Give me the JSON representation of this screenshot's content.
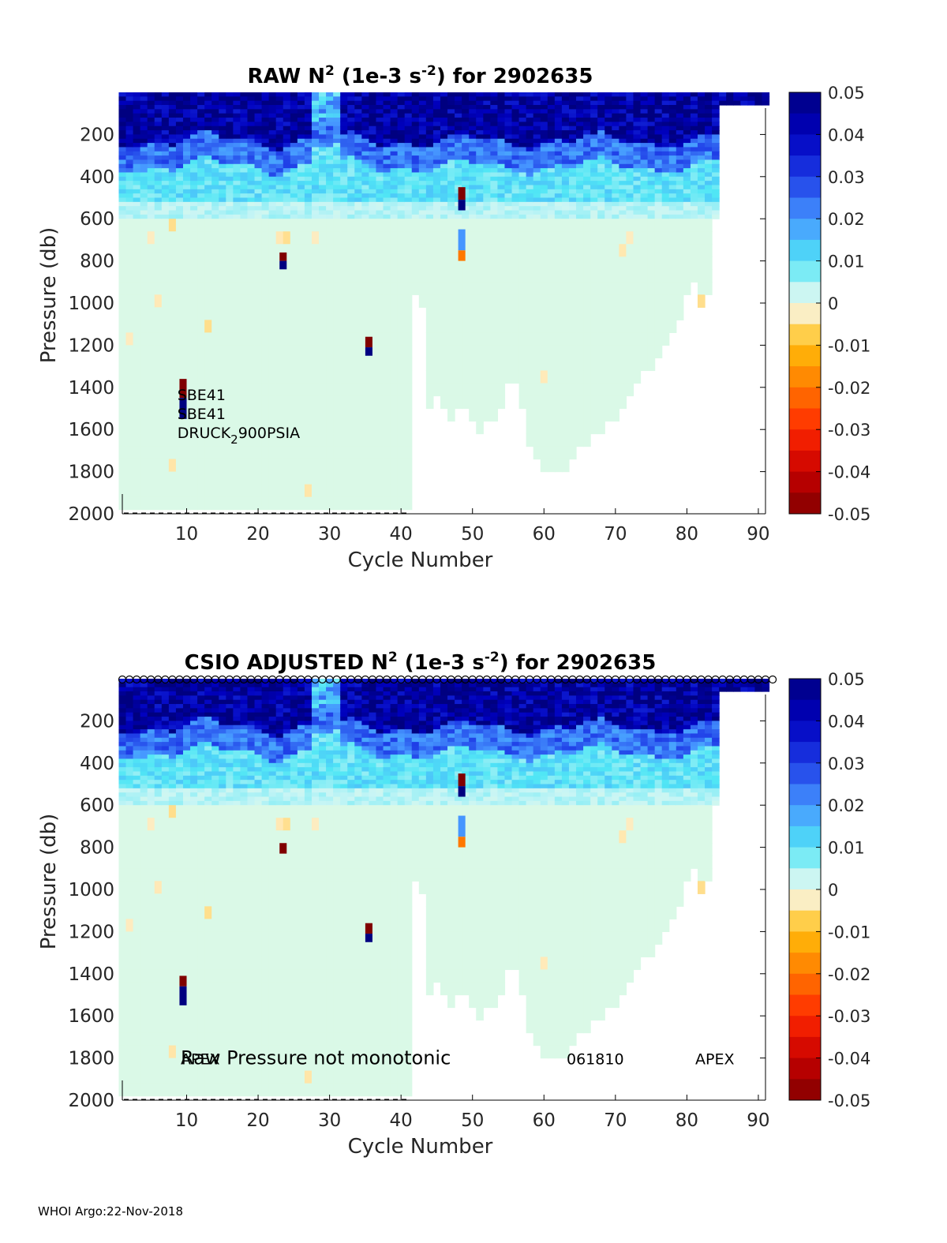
{
  "chart_data": [
    {
      "type": "heatmap",
      "title_main": "RAW N",
      "title_sup": "2",
      "title_mid": " (1e-3 s",
      "title_sup2": "-2",
      "title_end": ") for 2902635",
      "xlabel": "Cycle Number",
      "ylabel": "Pressure (db)",
      "xlim": [
        1,
        91
      ],
      "ylim": [
        0,
        2000
      ],
      "y_reversed": true,
      "xticks": [
        10,
        20,
        30,
        40,
        50,
        60,
        70,
        80,
        90
      ],
      "yticks": [
        200,
        400,
        600,
        800,
        1000,
        1200,
        1400,
        1600,
        1800,
        2000
      ],
      "colorbar": {
        "range": [
          -0.05,
          0.05
        ],
        "ticks": [
          "0.05",
          "0.04",
          "0.03",
          "0.02",
          "0.01",
          "0",
          "-0.01",
          "-0.02",
          "-0.03",
          "-0.04",
          "-0.05"
        ]
      },
      "annotations": [
        {
          "text": "SBE41",
          "cycle": 9.8,
          "pressure": 1535
        },
        {
          "text": "SBE41",
          "cycle": 9.8,
          "pressure": 1625
        },
        {
          "text": "DRUCK",
          "sub": "2",
          "after": "900PSIA",
          "cycle": 9.8,
          "pressure": 1715
        }
      ],
      "depth_max_by_cycle": "cycles 1–41 profiles to ~1980 db; cycles 42–84 shallower (~900–1800 db); cycles 85–91 near surface only",
      "outliers": [
        {
          "cycle": 9.5,
          "p_from": 1360,
          "p_to": 1450,
          "value": -0.05
        },
        {
          "cycle": 9.5,
          "p_from": 1450,
          "p_to": 1550,
          "value": 0.05
        },
        {
          "cycle": 23.5,
          "p_from": 760,
          "p_to": 800,
          "value": -0.05
        },
        {
          "cycle": 23.5,
          "p_from": 800,
          "p_to": 840,
          "value": 0.05
        },
        {
          "cycle": 35.5,
          "p_from": 1160,
          "p_to": 1210,
          "value": -0.05
        },
        {
          "cycle": 35.5,
          "p_from": 1210,
          "p_to": 1250,
          "value": 0.05
        },
        {
          "cycle": 48.5,
          "p_from": 450,
          "p_to": 510,
          "value": -0.05
        },
        {
          "cycle": 48.5,
          "p_from": 510,
          "p_to": 560,
          "value": 0.05
        },
        {
          "cycle": 48.5,
          "p_from": 650,
          "p_to": 750,
          "value": 0.02
        },
        {
          "cycle": 48.5,
          "p_from": 750,
          "p_to": 800,
          "value": -0.02
        }
      ]
    },
    {
      "type": "heatmap",
      "title_main": "CSIO  ADJUSTED N",
      "title_sup": "2",
      "title_mid": " (1e-3 s",
      "title_sup2": "-2",
      "title_end": ") for 2902635",
      "xlabel": "Cycle Number",
      "ylabel": "Pressure (db)",
      "xlim": [
        1,
        91
      ],
      "ylim": [
        0,
        2000
      ],
      "y_reversed": true,
      "xticks": [
        10,
        20,
        30,
        40,
        50,
        60,
        70,
        80,
        90
      ],
      "yticks": [
        200,
        400,
        600,
        800,
        1000,
        1200,
        1400,
        1600,
        1800,
        2000
      ],
      "colorbar": {
        "range": [
          -0.05,
          0.05
        ],
        "ticks": [
          "0.05",
          "0.04",
          "0.03",
          "0.02",
          "0.01",
          "0",
          "-0.01",
          "-0.02",
          "-0.03",
          "-0.04",
          "-0.05"
        ]
      },
      "qc_markers_row": "open circles along top edge for every cycle 1–91",
      "annotations": [
        {
          "text": "APEX",
          "cycle": 9.8,
          "pressure": 1800,
          "overlap": true
        },
        {
          "text": "Raw Pressure not monotonic",
          "cycle": 9.8,
          "pressure": 1800
        },
        {
          "text": "061810",
          "cycle": 66,
          "pressure": 1800
        },
        {
          "text": "APEX",
          "cycle": 81,
          "pressure": 1800
        }
      ],
      "outliers": [
        {
          "cycle": 9.5,
          "p_from": 1410,
          "p_to": 1460,
          "value": -0.05
        },
        {
          "cycle": 9.5,
          "p_from": 1460,
          "p_to": 1550,
          "value": 0.05
        },
        {
          "cycle": 23.5,
          "p_from": 780,
          "p_to": 830,
          "value": -0.05
        },
        {
          "cycle": 35.5,
          "p_from": 1160,
          "p_to": 1210,
          "value": -0.05
        },
        {
          "cycle": 35.5,
          "p_from": 1210,
          "p_to": 1250,
          "value": 0.05
        },
        {
          "cycle": 48.5,
          "p_from": 450,
          "p_to": 510,
          "value": -0.05
        },
        {
          "cycle": 48.5,
          "p_from": 510,
          "p_to": 560,
          "value": 0.05
        },
        {
          "cycle": 48.5,
          "p_from": 650,
          "p_to": 750,
          "value": 0.02
        },
        {
          "cycle": 48.5,
          "p_from": 750,
          "p_to": 800,
          "value": -0.02
        }
      ]
    }
  ],
  "footer": "WHOI Argo:22-Nov-2018"
}
